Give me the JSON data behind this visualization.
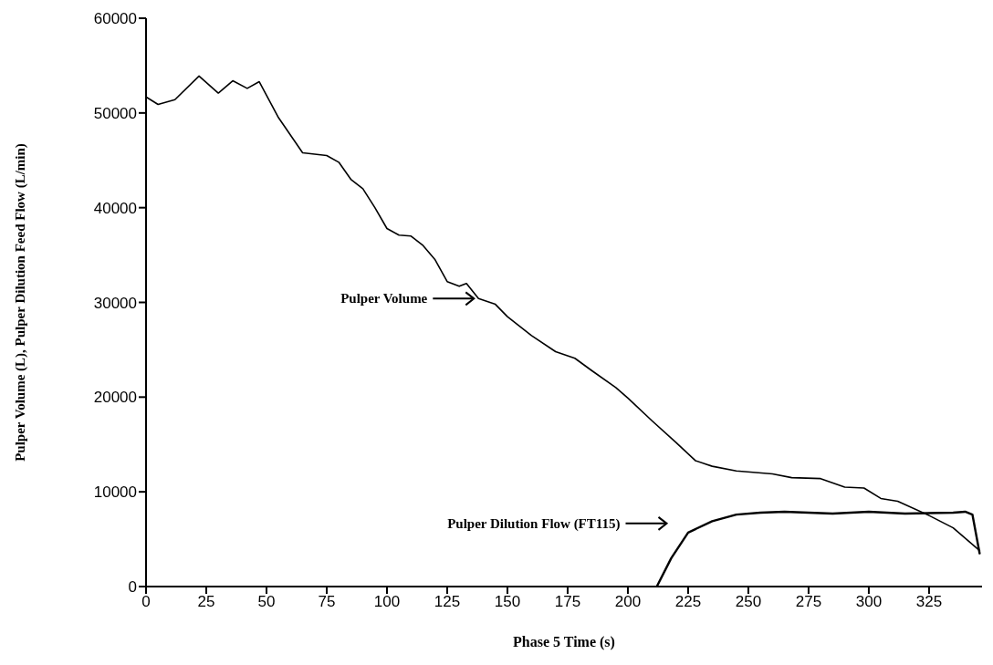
{
  "chart_data": {
    "type": "line",
    "xlabel": "Phase 5 Time (s)",
    "ylabel": "Pulper Volume (L), Pulper Dilution Feed Flow (L/min)",
    "xlim": [
      0,
      347
    ],
    "xticks": [
      0,
      25,
      50,
      75,
      100,
      125,
      150,
      175,
      200,
      225,
      250,
      275,
      300,
      325
    ],
    "ylim": [
      0,
      60000
    ],
    "yticks": [
      0,
      10000,
      20000,
      30000,
      40000,
      50000,
      60000
    ],
    "grid": false,
    "legend": "center",
    "series": [
      {
        "name": "Pulper Volume",
        "color": "#000000",
        "x": [
          0,
          5,
          12,
          22,
          30,
          36,
          42,
          47,
          55,
          65,
          75,
          80,
          85,
          90,
          95,
          100,
          105,
          110,
          115,
          120,
          125,
          130,
          133,
          138,
          145,
          150,
          160,
          170,
          178,
          185,
          195,
          200,
          210,
          220,
          228,
          235,
          245,
          260,
          268,
          280,
          290,
          298,
          305,
          312,
          325,
          335,
          346
        ],
        "values": [
          51700,
          50900,
          51400,
          53900,
          52100,
          53400,
          52600,
          53300,
          49500,
          45800,
          45500,
          44800,
          43000,
          42000,
          40000,
          37800,
          37100,
          37000,
          36000,
          34500,
          32200,
          31700,
          32000,
          30400,
          29800,
          28500,
          26500,
          24800,
          24100,
          22800,
          21000,
          19900,
          17500,
          15200,
          13300,
          12700,
          12200,
          11900,
          11500,
          11400,
          10500,
          10400,
          9300,
          9000,
          7500,
          6200,
          3800
        ]
      },
      {
        "name": "Pulper Dilution Flow (FT115)",
        "color": "#000000",
        "x": [
          212,
          218,
          225,
          235,
          245,
          255,
          265,
          285,
          300,
          315,
          335,
          340,
          343,
          346
        ],
        "values": [
          0,
          3000,
          5700,
          6900,
          7600,
          7800,
          7900,
          7700,
          7900,
          7700,
          7800,
          7900,
          7600,
          3500
        ]
      }
    ]
  }
}
